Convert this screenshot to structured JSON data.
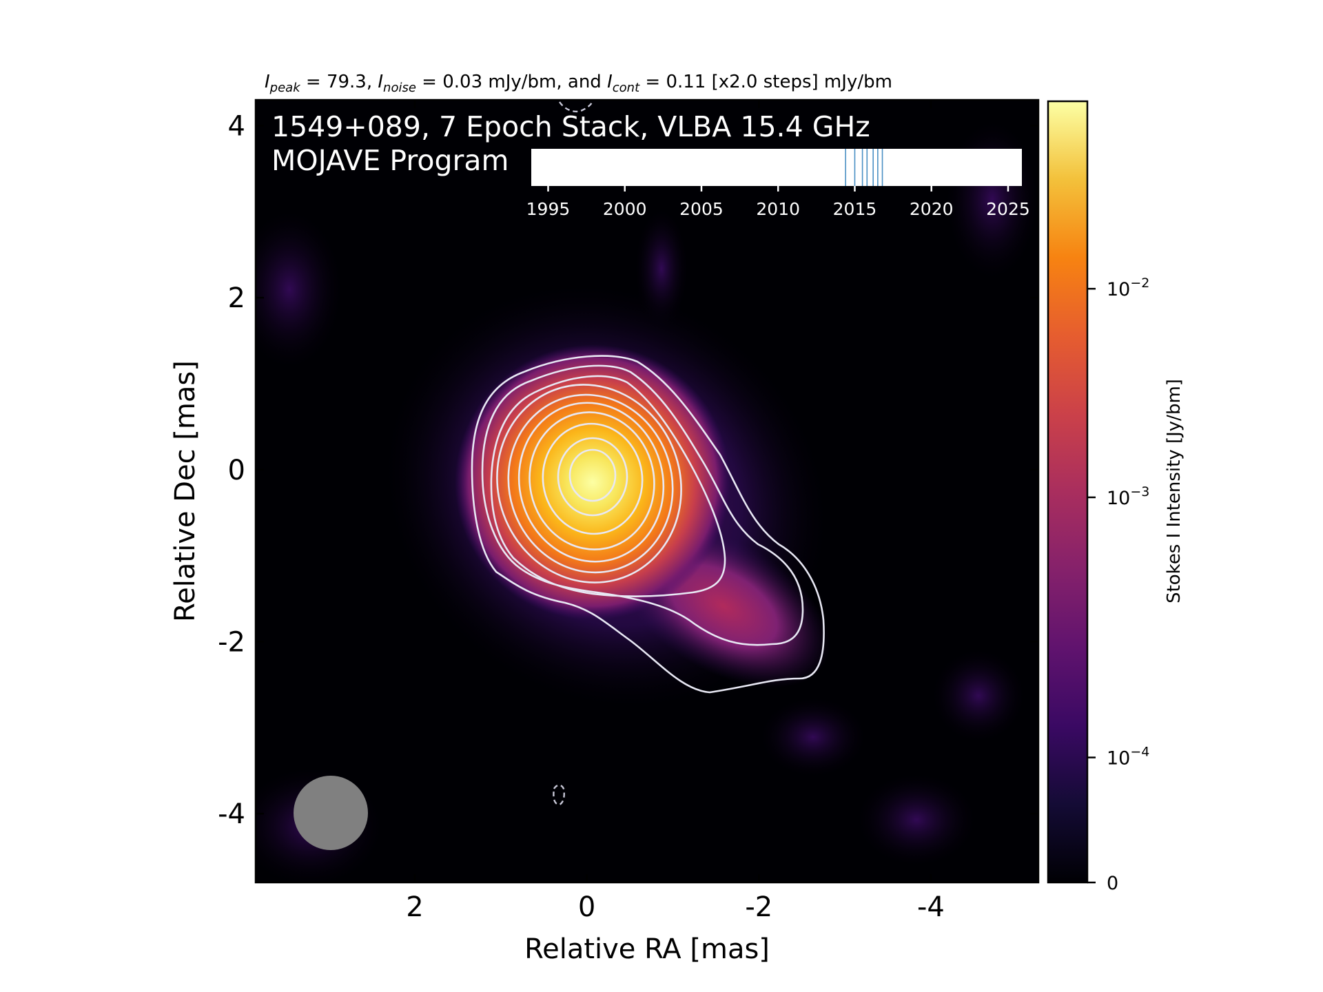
{
  "header": {
    "peak_sym": "I",
    "peak_sub": "peak",
    "peak_val": " = 79.3, ",
    "noise_sym": "I",
    "noise_sub": "noise",
    "noise_val": " = 0.03 mJy/bm, and ",
    "cont_sym": "I",
    "cont_sub": "cont",
    "cont_val": " = 0.11 [x2.0 steps] mJy/bm"
  },
  "chart_data": {
    "type": "heatmap",
    "title_line1": "1549+089, 7 Epoch Stack, VLBA 15.4 GHz",
    "title_line2": "MOJAVE Program",
    "xlabel": "Relative RA [mas]",
    "ylabel": "Relative Dec [mas]",
    "xlim": [
      3.85,
      -5.25
    ],
    "ylim": [
      -4.8,
      4.3
    ],
    "x_ticks": [
      {
        "value": 2,
        "label": "2"
      },
      {
        "value": 0,
        "label": "0"
      },
      {
        "value": -2,
        "label": "-2"
      },
      {
        "value": -4,
        "label": "-4"
      }
    ],
    "y_ticks": [
      {
        "value": 4,
        "label": "4"
      },
      {
        "value": 2,
        "label": "2"
      },
      {
        "value": 0,
        "label": "0"
      },
      {
        "value": -2,
        "label": "-2"
      },
      {
        "value": -4,
        "label": "-4"
      }
    ],
    "colorbar": {
      "label": "Stokes I Intensity [Jy/bm]",
      "scale": "symlog",
      "colormap": "inferno",
      "ticks": [
        {
          "frac": 0.0,
          "base": "0",
          "exp": ""
        },
        {
          "frac": 0.16,
          "base": "10",
          "exp": "−4"
        },
        {
          "frac": 0.493,
          "base": "10",
          "exp": "−3"
        },
        {
          "frac": 0.76,
          "base": "10",
          "exp": "−2"
        }
      ]
    },
    "epoch_timeline": {
      "ticks": [
        1995,
        2000,
        2005,
        2010,
        2015,
        2020,
        2025
      ],
      "range": [
        1993.9,
        2025.9
      ],
      "epochs": [
        2014.4,
        2015.0,
        2015.5,
        2015.8,
        2016.2,
        2016.5,
        2016.8
      ],
      "epoch_color": "#4a90c4"
    },
    "peak_intensity_mJy": 79.3,
    "noise_mJy": 0.03,
    "lowest_contour_mJy": 0.11,
    "contour_step_factor": 2.0,
    "colors": {
      "background": "#000004",
      "contour": "#e8e8f4",
      "beam": "#808080"
    }
  }
}
